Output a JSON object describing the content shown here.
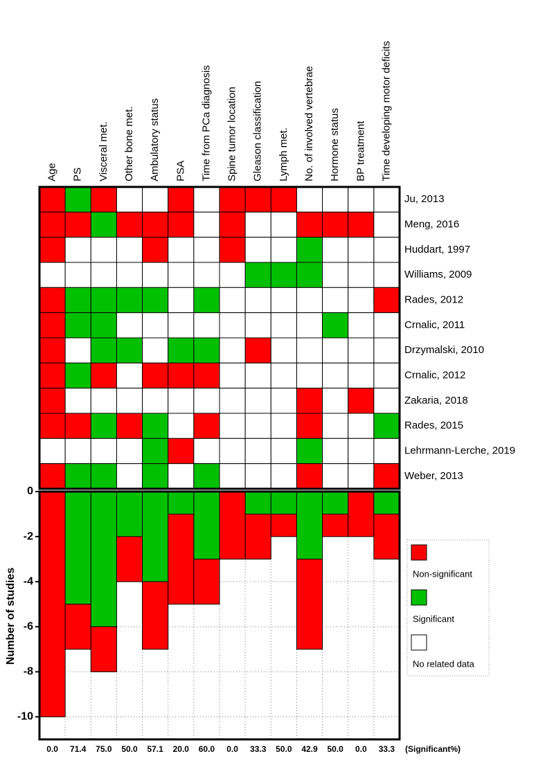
{
  "chart_data": {
    "type": "bar",
    "stacked": true,
    "ylabel": "Number of studies",
    "categories": [
      "Age",
      "PS",
      "Visceral met.",
      "Other bone met.",
      "Ambulatory status",
      "PSA",
      "Time from PCa diagnosis",
      "Spine tumor location",
      "Gleason classification",
      "Lymph met.",
      "No. of involved vertebrae",
      "Hormone status",
      "BP treatment",
      "Time developing motor deficits"
    ],
    "series": [
      {
        "name": "Significant",
        "color": "#00c000",
        "values": [
          0,
          -5,
          -6,
          -2,
          -4,
          -1,
          -3,
          0,
          -1,
          -1,
          -3,
          -1,
          0,
          -1
        ]
      },
      {
        "name": "Non-significant",
        "color": "#ff0000",
        "values": [
          -10,
          -2,
          -2,
          -2,
          -3,
          -4,
          -2,
          -3,
          -2,
          -1,
          -4,
          -1,
          -2,
          -2
        ]
      }
    ],
    "no_data": {
      "name": "No related data",
      "color": "#ffffff"
    },
    "ylim": [
      -11,
      0
    ],
    "yticks": [
      0,
      -2,
      -4,
      -6,
      -8,
      -10
    ],
    "grid": true,
    "significant_percent": {
      "label": "(Significant%)",
      "values": [
        0,
        71.4,
        75,
        50,
        57.1,
        20,
        60,
        0,
        33.3,
        50,
        42.9,
        50,
        0,
        33.3
      ],
      "value_labels": [
        "0.0",
        "71.4",
        "75.0",
        "50.0",
        "57.1",
        "20.0",
        "60.0",
        "0.0",
        "33.3",
        "50.0",
        "42.9",
        "50.0",
        "0.0",
        "33.3"
      ]
    },
    "heatmap": {
      "rows": [
        "Ju, 2013",
        "Meng, 2016",
        "Huddart, 1997",
        "Williams, 2009",
        "Rades, 2012",
        "Crnalic, 2011",
        "Drzymalski, 2010",
        "Crnalic, 2012",
        "Zakaria, 2018",
        "Rades, 2015",
        "Lehrmann-Lerche, 2019",
        "Weber, 2013"
      ],
      "cells": [
        [
          1,
          0,
          1,
          2,
          2,
          1,
          2,
          1,
          1,
          1,
          2,
          2,
          2,
          2
        ],
        [
          1,
          1,
          0,
          1,
          1,
          1,
          2,
          1,
          2,
          2,
          1,
          1,
          1,
          2
        ],
        [
          1,
          2,
          2,
          2,
          1,
          2,
          2,
          1,
          2,
          2,
          0,
          2,
          2,
          2
        ],
        [
          2,
          2,
          2,
          2,
          2,
          2,
          2,
          2,
          0,
          0,
          0,
          2,
          2,
          2
        ],
        [
          1,
          0,
          0,
          0,
          0,
          2,
          0,
          2,
          2,
          2,
          2,
          2,
          2,
          1
        ],
        [
          1,
          0,
          0,
          2,
          2,
          2,
          2,
          2,
          2,
          2,
          2,
          0,
          2,
          2
        ],
        [
          1,
          2,
          0,
          0,
          2,
          0,
          0,
          2,
          1,
          2,
          2,
          2,
          2,
          2
        ],
        [
          1,
          0,
          1,
          2,
          1,
          1,
          1,
          2,
          2,
          2,
          2,
          2,
          2,
          2
        ],
        [
          1,
          2,
          2,
          2,
          2,
          2,
          2,
          2,
          2,
          2,
          1,
          2,
          1,
          2
        ],
        [
          1,
          1,
          0,
          1,
          0,
          2,
          1,
          2,
          2,
          2,
          1,
          2,
          2,
          0
        ],
        [
          2,
          2,
          2,
          2,
          0,
          1,
          2,
          2,
          2,
          2,
          0,
          2,
          2,
          2
        ],
        [
          1,
          0,
          0,
          2,
          0,
          2,
          0,
          2,
          2,
          2,
          1,
          2,
          2,
          1
        ]
      ]
    }
  }
}
